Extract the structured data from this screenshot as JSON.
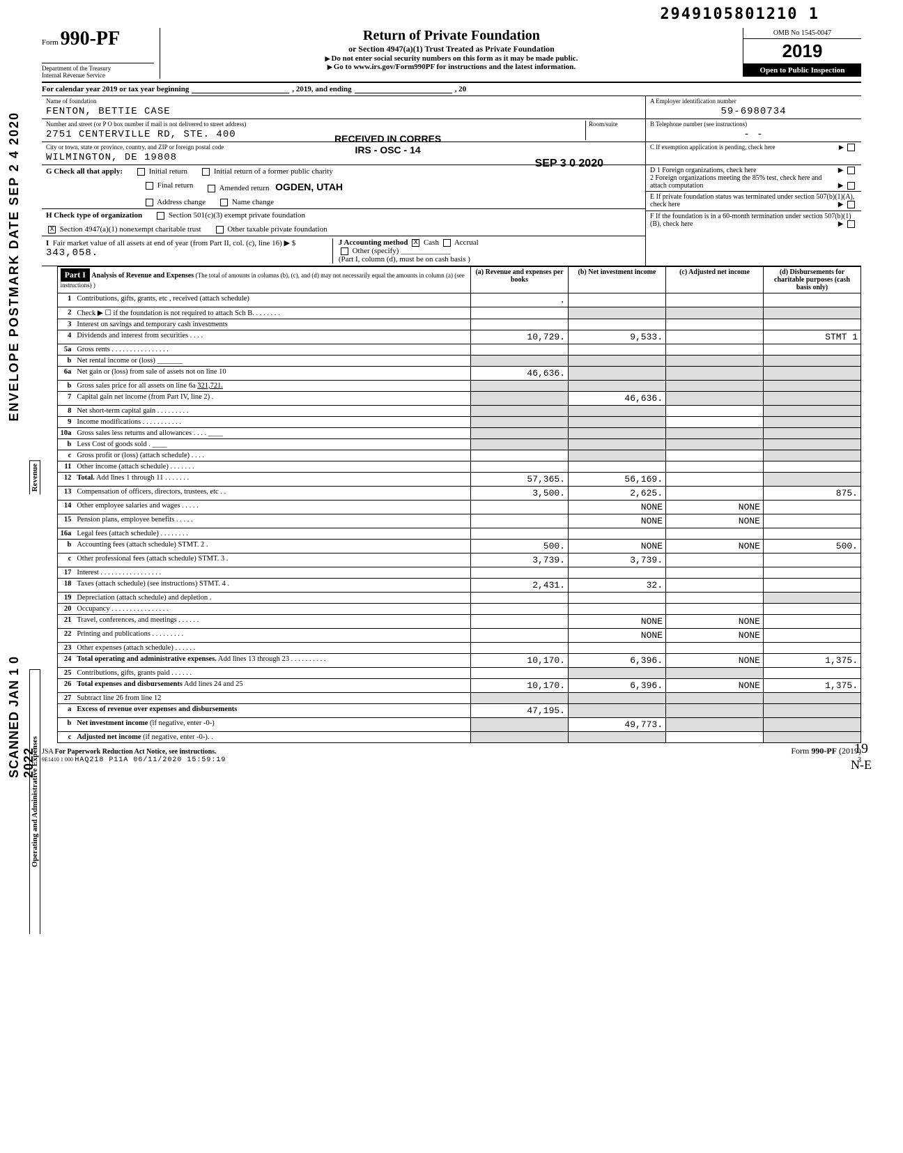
{
  "barcode": "2949105801210 1",
  "side_postmark": "ENVELOPE POSTMARK DATE SEP 2 4 2020",
  "side_scanned": "SCANNED JAN 1 0 2022",
  "form": {
    "prefix": "Form",
    "number": "990-PF",
    "dept1": "Department of the Treasury",
    "dept2": "Internal Revenue Service"
  },
  "title": {
    "main": "Return of Private Foundation",
    "sub": "or Section 4947(a)(1) Trust Treated as Private Foundation",
    "warn": "Do not enter social security numbers on this form as it may be made public.",
    "goto": "Go to www.irs.gov/Form990PF for instructions and the latest information."
  },
  "omb": {
    "label": "OMB No 1545-0047",
    "year": "2019",
    "inspect": "Open to Public Inspection"
  },
  "cal_year": {
    "text1": "For calendar year 2019 or tax year beginning",
    "text2": ", 2019, and ending",
    "text3": ", 20"
  },
  "name_block": {
    "label": "Name of foundation",
    "value": "FENTON, BETTIE CASE"
  },
  "ein_block": {
    "label": "A  Employer identification number",
    "value": "59-6980734"
  },
  "street_block": {
    "label": "Number and street (or P O  box number if mail is not delivered to street address)",
    "room": "Room/suite",
    "value": "2751 CENTERVILLE RD, STE. 400",
    "stamp1": "RECEIVED IN CORRES",
    "stamp2": "IRS - OSC - 14"
  },
  "tel_block": {
    "label": "B  Telephone number (see instructions)",
    "value": "-         -"
  },
  "city_block": {
    "label": "City or town, state or province, country, and ZIP or foreign postal code",
    "value": "WILMINGTON, DE 19808",
    "stamp_date": "SEP 3 0 2020"
  },
  "c_block": {
    "label": "C  If exemption application is pending, check here"
  },
  "g_block": {
    "label": "G Check all that apply:",
    "opts": [
      "Initial return",
      "Final return",
      "Address change",
      "Initial return of a former public charity",
      "Amended return",
      "Name change"
    ],
    "stamp": "OGDEN, UTAH"
  },
  "d_block": {
    "d1": "D  1  Foreign organizations, check here",
    "d2": "2  Foreign organizations meeting the 85% test, check here and attach computation"
  },
  "h_block": {
    "label": "H  Check type of organization",
    "opt1": "Section 501(c)(3) exempt private foundation",
    "opt2": "Section 4947(a)(1) nonexempt charitable trust",
    "opt3": "Other taxable private foundation",
    "checked": "X"
  },
  "e_block": {
    "label": "E  If private foundation status was terminated under section 507(b)(1)(A), check here"
  },
  "i_block": {
    "label1": "I  Fair market value of all assets at end of year (from Part II, col. (c), line 16)",
    "arrow": "▶ $",
    "value": "343,058.",
    "j_label": "J Accounting method",
    "j_cash": "Cash",
    "j_accrual": "Accrual",
    "j_other": "Other (specify)",
    "j_note": "(Part I, column (d), must be on cash basis )",
    "j_checked": "X"
  },
  "f_block": {
    "label": "F  If the foundation is in a 60-month termination under section 507(b)(1)(B), check here"
  },
  "part1": {
    "header": "Part I",
    "title": "Analysis of Revenue and Expenses",
    "note": "(The total of amounts in columns (b), (c), and (d) may not necessarily equal the amounts in column (a) (see instructions) )",
    "col_a": "(a) Revenue and expenses per books",
    "col_b": "(b) Net investment income",
    "col_c": "(c) Adjusted net income",
    "col_d": "(d) Disbursements for charitable purposes (cash basis only)"
  },
  "vert_revenue": "Revenue",
  "vert_expenses": "Operating and Administrative Expenses",
  "lines": [
    {
      "n": "1",
      "d": "",
      "a": ".",
      "b": "",
      "c": ""
    },
    {
      "n": "2",
      "d": "",
      "a": "",
      "b": "",
      "c": "",
      "shade_bcd": true
    },
    {
      "n": "3",
      "d": "",
      "a": "",
      "b": "",
      "c": ""
    },
    {
      "n": "4",
      "d": "STMT 1",
      "a": "10,729.",
      "b": "9,533.",
      "c": ""
    },
    {
      "n": "5a",
      "d": "",
      "a": "",
      "b": "",
      "c": ""
    },
    {
      "n": "b",
      "d": "",
      "a": "",
      "b": "",
      "c": "",
      "shade_abcd": true
    },
    {
      "n": "6a",
      "d": "",
      "a": "46,636.",
      "b": "",
      "c": "",
      "shade_bcd": true
    },
    {
      "n": "b",
      "d": "",
      "a": "",
      "b": "",
      "c": "",
      "shade_abcd": true
    },
    {
      "n": "7",
      "d": "",
      "a": "",
      "b": "46,636.",
      "c": "",
      "shade_a": true,
      "shade_cd": true
    },
    {
      "n": "8",
      "d": "",
      "a": "",
      "b": "",
      "c": "",
      "shade_ab": true,
      "shade_d": true
    },
    {
      "n": "9",
      "d": "",
      "a": "",
      "b": "",
      "c": "",
      "shade_ab": true,
      "shade_d": true
    },
    {
      "n": "10a",
      "d": "",
      "a": "",
      "b": "",
      "c": "",
      "shade_abcd": true
    },
    {
      "n": "b",
      "d": "",
      "a": "",
      "b": "",
      "c": "",
      "shade_abcd": true
    },
    {
      "n": "c",
      "d": "",
      "a": "",
      "b": "",
      "c": "",
      "shade_b": true,
      "shade_d": true
    },
    {
      "n": "11",
      "d": "",
      "a": "",
      "b": "",
      "c": ""
    },
    {
      "n": "12",
      "d": "",
      "a": "57,365.",
      "b": "56,169.",
      "c": "",
      "bold": true,
      "shade_d": true
    },
    {
      "n": "13",
      "d": "875.",
      "a": "3,500.",
      "b": "2,625.",
      "c": ""
    },
    {
      "n": "14",
      "d": "",
      "a": "",
      "b": "NONE",
      "c": "NONE"
    },
    {
      "n": "15",
      "d": "",
      "a": "",
      "b": "NONE",
      "c": "NONE"
    },
    {
      "n": "16a",
      "d": "",
      "a": "",
      "b": "",
      "c": ""
    },
    {
      "n": "b",
      "d": "500.",
      "a": "500.",
      "b": "NONE",
      "c": "NONE"
    },
    {
      "n": "c",
      "d": "",
      "a": "3,739.",
      "b": "3,739.",
      "c": ""
    },
    {
      "n": "17",
      "d": "",
      "a": "",
      "b": "",
      "c": ""
    },
    {
      "n": "18",
      "d": "",
      "a": "2,431.",
      "b": "32.",
      "c": ""
    },
    {
      "n": "19",
      "d": "",
      "a": "",
      "b": "",
      "c": "",
      "shade_d": true
    },
    {
      "n": "20",
      "d": "",
      "a": "",
      "b": "",
      "c": ""
    },
    {
      "n": "21",
      "d": "",
      "a": "",
      "b": "NONE",
      "c": "NONE"
    },
    {
      "n": "22",
      "d": "",
      "a": "",
      "b": "NONE",
      "c": "NONE"
    },
    {
      "n": "23",
      "d": "",
      "a": "",
      "b": "",
      "c": ""
    },
    {
      "n": "24",
      "d": "1,375.",
      "a": "10,170.",
      "b": "6,396.",
      "c": "NONE",
      "bold": true
    },
    {
      "n": "25",
      "d": "",
      "a": "",
      "b": "",
      "c": "",
      "shade_bc": true
    },
    {
      "n": "26",
      "d": "1,375.",
      "a": "10,170.",
      "b": "6,396.",
      "c": "NONE",
      "bold": true
    },
    {
      "n": "27",
      "d": "",
      "a": "",
      "b": "",
      "c": "",
      "shade_abcd": true
    },
    {
      "n": "a",
      "d": "",
      "a": "47,195.",
      "b": "",
      "c": "",
      "shade_bcd": true
    },
    {
      "n": "b",
      "d": "",
      "a": "",
      "b": "49,773.",
      "c": "",
      "shade_a": true,
      "shade_cd": true
    },
    {
      "n": "c",
      "d": "",
      "a": "",
      "b": "",
      "c": "",
      "shade_ab": true,
      "shade_d": true
    }
  ],
  "footer": {
    "jsa": "JSA",
    "pra": "For Paperwork Reduction Act Notice, see instructions.",
    "code1": "9E1410 1 000",
    "code2": "HAQ218 P11A 06/11/2020 15:59:19",
    "form": "Form 990-PF (2019)",
    "page": "3",
    "hand19": "19",
    "handne": "N-E"
  }
}
